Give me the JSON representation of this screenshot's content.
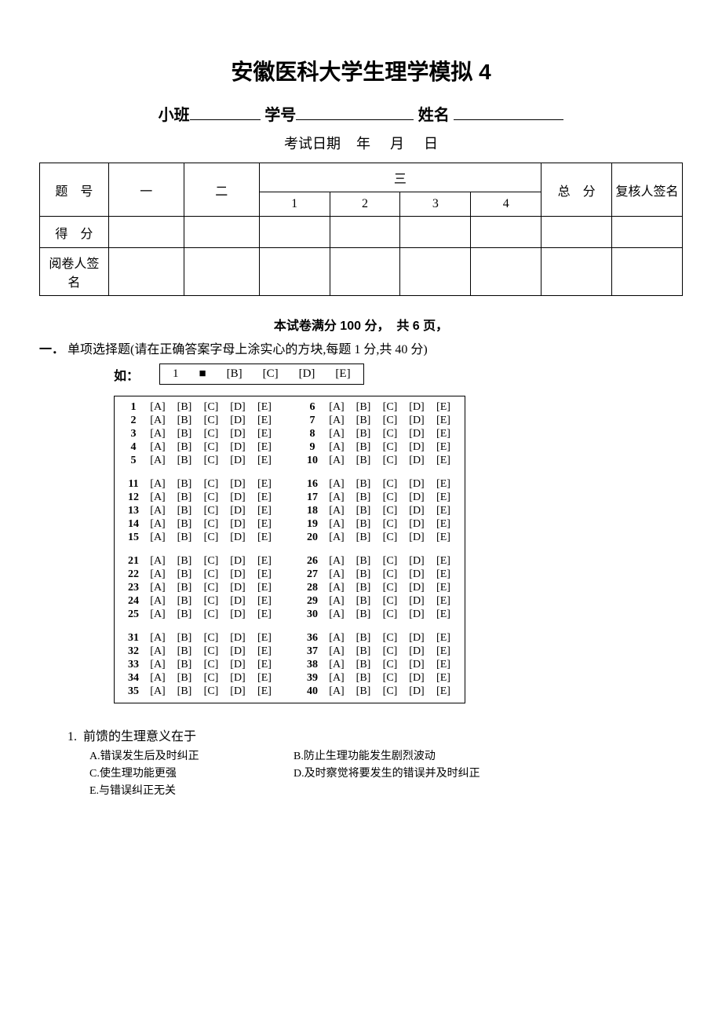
{
  "title": "安徽医科大学生理学模拟 4",
  "header_fields": {
    "class_label": "小班",
    "student_id_label": "学号",
    "name_label": "姓名"
  },
  "exam_date": {
    "prefix": "考试日期",
    "year": "年",
    "month": "月",
    "day": "日"
  },
  "score_table": {
    "col_question": "题　号",
    "col_one": "一",
    "col_two": "二",
    "col_three": "三",
    "sub1": "1",
    "sub2": "2",
    "sub3": "3",
    "sub4": "4",
    "col_total": "总　分",
    "col_reviewer": "复核人签名",
    "row_score": "得　分",
    "row_grader": "阅卷人签　名"
  },
  "note_line": {
    "prefix": "本试卷",
    "full_score_label": "满分 100 ",
    "full_score_unit": "分，",
    "pages_label": "共 6 页，"
  },
  "section1": {
    "marker": "一．",
    "text": "单项选择题(请在正确答案字母上涂实心的方块,每题 1 分,共 40 分)",
    "example_label": "如：",
    "example_num": "1",
    "example_filled": "■",
    "options": [
      "[A]",
      "[B]",
      "[C]",
      "[D]",
      "[E]"
    ],
    "example_remaining": [
      "[B]",
      "[C]",
      "[D]",
      "[E]"
    ],
    "num_questions": 40
  },
  "question1": {
    "num": "1.",
    "stem": "前馈的生理意义在于",
    "choices": {
      "A": "A.错误发生后及时纠正",
      "B": "B.防止生理功能发生剧烈波动",
      "C": "C.使生理功能更强",
      "D": "D.及时察觉将要发生的错误并及时纠正",
      "E": "E.与错误纠正无关"
    }
  }
}
